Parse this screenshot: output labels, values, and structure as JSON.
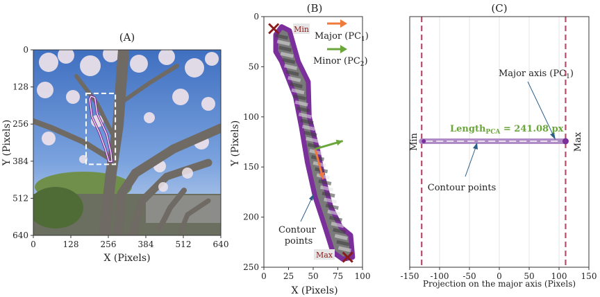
{
  "colors": {
    "contour": "#7b2f9a",
    "contour_light": "#b08cc6",
    "major": "#f07a3a",
    "minor": "#6aa63a",
    "marker": "#8b1a1a",
    "dash": "#b84a6a",
    "length_label": "#6aa63a"
  },
  "panels": {
    "a": {
      "title": "(A)"
    },
    "b": {
      "title": "(B)"
    },
    "c": {
      "title": "(C)"
    }
  },
  "chart_data": [
    {
      "type": "image",
      "title": "(A)",
      "xlabel": "X (Pixels)",
      "ylabel": "Y (Pixels)",
      "xlim": [
        0,
        640
      ],
      "ylim": [
        640,
        0
      ],
      "xticks": [
        0,
        128,
        256,
        384,
        512,
        640
      ],
      "yticks": [
        0,
        128,
        256,
        384,
        512,
        640
      ],
      "roi_box": {
        "x0": 180,
        "y0": 150,
        "x1": 280,
        "y1": 395
      },
      "contour_outline": [
        [
          197,
          160
        ],
        [
          210,
          165
        ],
        [
          218,
          220
        ],
        [
          250,
          290
        ],
        [
          265,
          355
        ],
        [
          268,
          385
        ],
        [
          258,
          385
        ],
        [
          245,
          340
        ],
        [
          225,
          285
        ],
        [
          200,
          230
        ],
        [
          192,
          170
        ]
      ]
    },
    {
      "type": "scatter",
      "title": "(B)",
      "xlabel": "X (Pixels)",
      "ylabel": "Y (Pixels)",
      "xlim": [
        0,
        100
      ],
      "ylim": [
        250,
        0
      ],
      "xticks": [
        0,
        25,
        50,
        75,
        100
      ],
      "yticks": [
        0,
        50,
        100,
        150,
        200,
        250
      ],
      "min_point": {
        "x": 10,
        "y": 12,
        "label": "Min"
      },
      "max_point": {
        "x": 85,
        "y": 240,
        "label": "Max"
      },
      "contour_outline": [
        [
          12,
          18
        ],
        [
          18,
          10
        ],
        [
          26,
          14
        ],
        [
          35,
          45
        ],
        [
          45,
          65
        ],
        [
          46,
          100
        ],
        [
          55,
          135
        ],
        [
          60,
          160
        ],
        [
          68,
          190
        ],
        [
          78,
          210
        ],
        [
          88,
          218
        ],
        [
          90,
          240
        ],
        [
          80,
          242
        ],
        [
          70,
          235
        ],
        [
          62,
          210
        ],
        [
          52,
          180
        ],
        [
          44,
          145
        ],
        [
          38,
          110
        ],
        [
          32,
          80
        ],
        [
          18,
          45
        ],
        [
          12,
          35
        ]
      ],
      "pc_arrows": [
        {
          "name": "Major",
          "x": 52,
          "y": 132,
          "dx": 8,
          "dy": 30
        },
        {
          "name": "Minor",
          "x": 52,
          "y": 132,
          "dx": 28,
          "dy": -8
        }
      ],
      "legend": [
        {
          "label": "Major (PC",
          "sub": "1",
          "close": ")"
        },
        {
          "label": "Minor (PC",
          "sub": "2",
          "close": ")"
        }
      ],
      "annotation": "Contour points"
    },
    {
      "type": "scatter",
      "title": "(C)",
      "xlabel": "Projection on the major axis (Pixels)",
      "ylabel": "",
      "xlim": [
        -150,
        150
      ],
      "xticks": [
        -150,
        -100,
        -50,
        0,
        50,
        100,
        150
      ],
      "min_projection": -130,
      "max_projection": 111,
      "length_label": "Length",
      "length_sub": "PCA",
      "length_value": " = 241.08 px",
      "min_label": "Min",
      "max_label": "Max",
      "major_axis_label": "Major axis (PC",
      "major_axis_sub": "1",
      "major_axis_close": ")",
      "contour_label": "Contour points"
    }
  ]
}
